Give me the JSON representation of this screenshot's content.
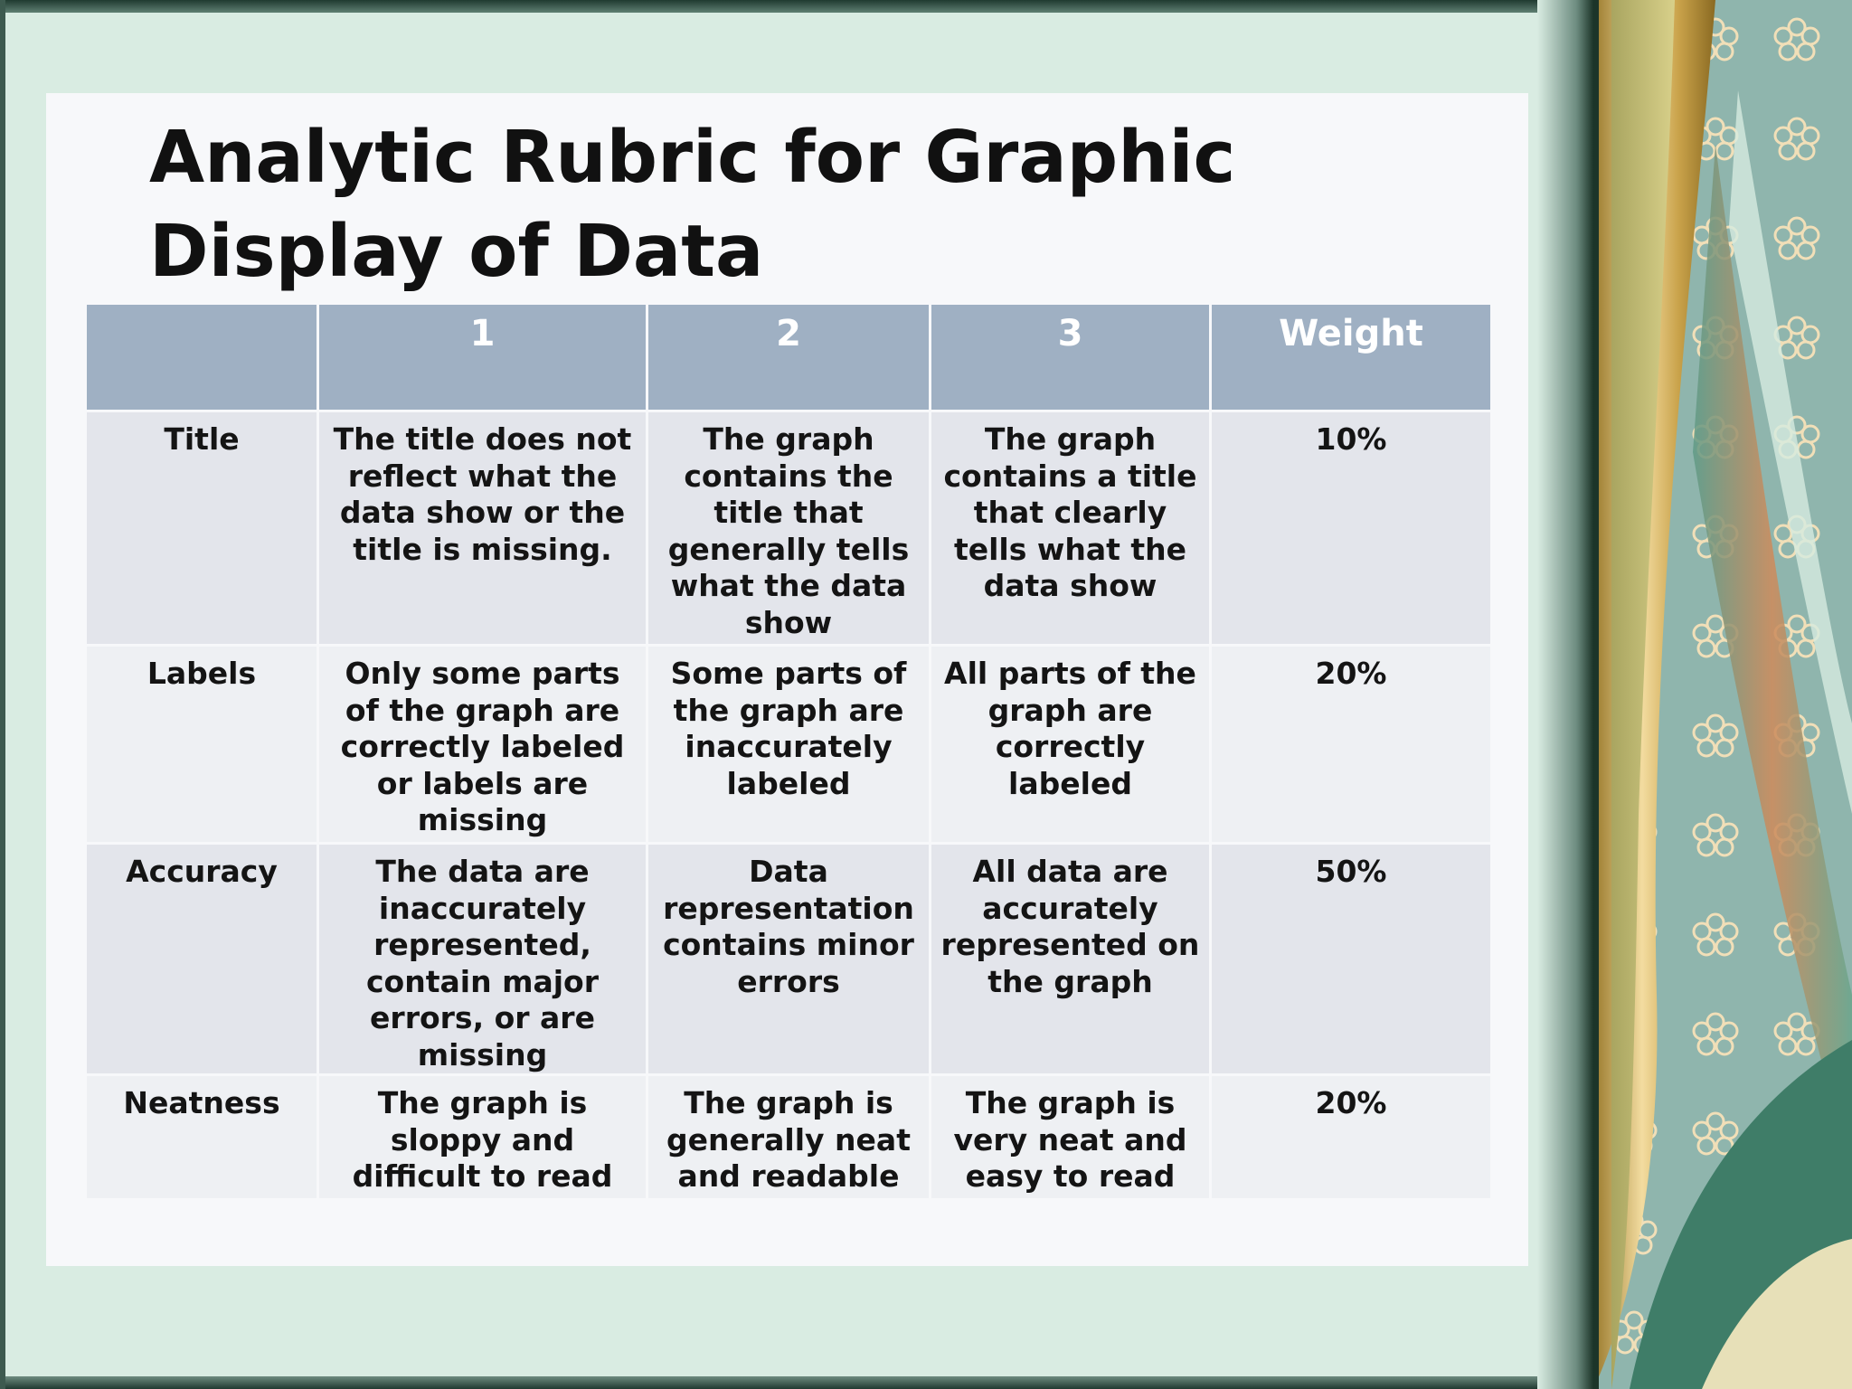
{
  "slide": {
    "title_line1": "Analytic Rubric for Graphic",
    "title_line2": "Display of Data"
  },
  "table": {
    "headers": [
      "",
      "1",
      "2",
      "3",
      "Weight"
    ],
    "rows": [
      {
        "criterion": "Title",
        "level1": "The title does  not reflect what the data show or the title is missing.",
        "level2": "The graph contains the title that generally tells what the data show",
        "level3": "The graph contains a title that clearly tells what the data show",
        "weight": "10%"
      },
      {
        "criterion": "Labels",
        "level1": "Only some parts of the graph are correctly labeled or labels are missing",
        "level2": "Some parts of the graph are inaccurately labeled",
        "level3": "All parts of the graph are correctly labeled",
        "weight": "20%"
      },
      {
        "criterion": "Accuracy",
        "level1": "The data are inaccurately represented, contain major errors, or are missing",
        "level2": "Data representation contains minor errors",
        "level3": "All data are accurately represented on the graph",
        "weight": "50%"
      },
      {
        "criterion": "Neatness",
        "level1": "The graph is sloppy and difficult to read",
        "level2": "The graph is generally neat and readable",
        "level3": "The graph is very neat and easy to read",
        "weight": "20%"
      }
    ]
  },
  "colors": {
    "header_bg": "#9fb0c3",
    "row_dark": "#e3e5eb",
    "row_light": "#eef0f3",
    "background": "#d9ece2",
    "decor_teal": "#8fb5ad",
    "decor_gold": "#c9a24a"
  }
}
